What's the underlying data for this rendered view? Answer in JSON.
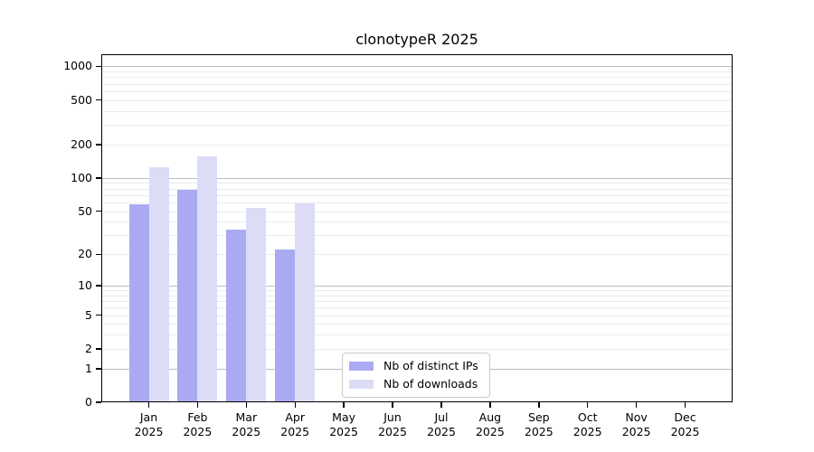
{
  "chart_data": {
    "type": "bar",
    "title": "clonotypeR 2025",
    "categories": [
      "Jan",
      "Feb",
      "Mar",
      "Apr",
      "May",
      "Jun",
      "Jul",
      "Aug",
      "Sep",
      "Oct",
      "Nov",
      "Dec"
    ],
    "category_year": "2025",
    "series": [
      {
        "name": "Nb of distinct IPs",
        "color": "#aaaaf2",
        "values": [
          58,
          78,
          34,
          22,
          null,
          null,
          null,
          null,
          null,
          null,
          null,
          null
        ]
      },
      {
        "name": "Nb of downloads",
        "color": "#dcdcf7",
        "values": [
          125,
          156,
          53,
          59,
          null,
          null,
          null,
          null,
          null,
          null,
          null,
          null
        ]
      }
    ],
    "xlabel": "",
    "ylabel": "",
    "y_ticks": [
      0,
      1,
      2,
      5,
      10,
      20,
      50,
      100,
      200,
      500,
      1000
    ],
    "y_scale": "log1p",
    "ylim": [
      0,
      1282
    ],
    "grid": "horizontal-major-and-minor",
    "legend_position": "bottom-center-inside"
  },
  "colors": {
    "major_grid": "#bdbdbd",
    "minor_grid": "#ebebeb",
    "spine": "#000000",
    "background": "#ffffff"
  }
}
